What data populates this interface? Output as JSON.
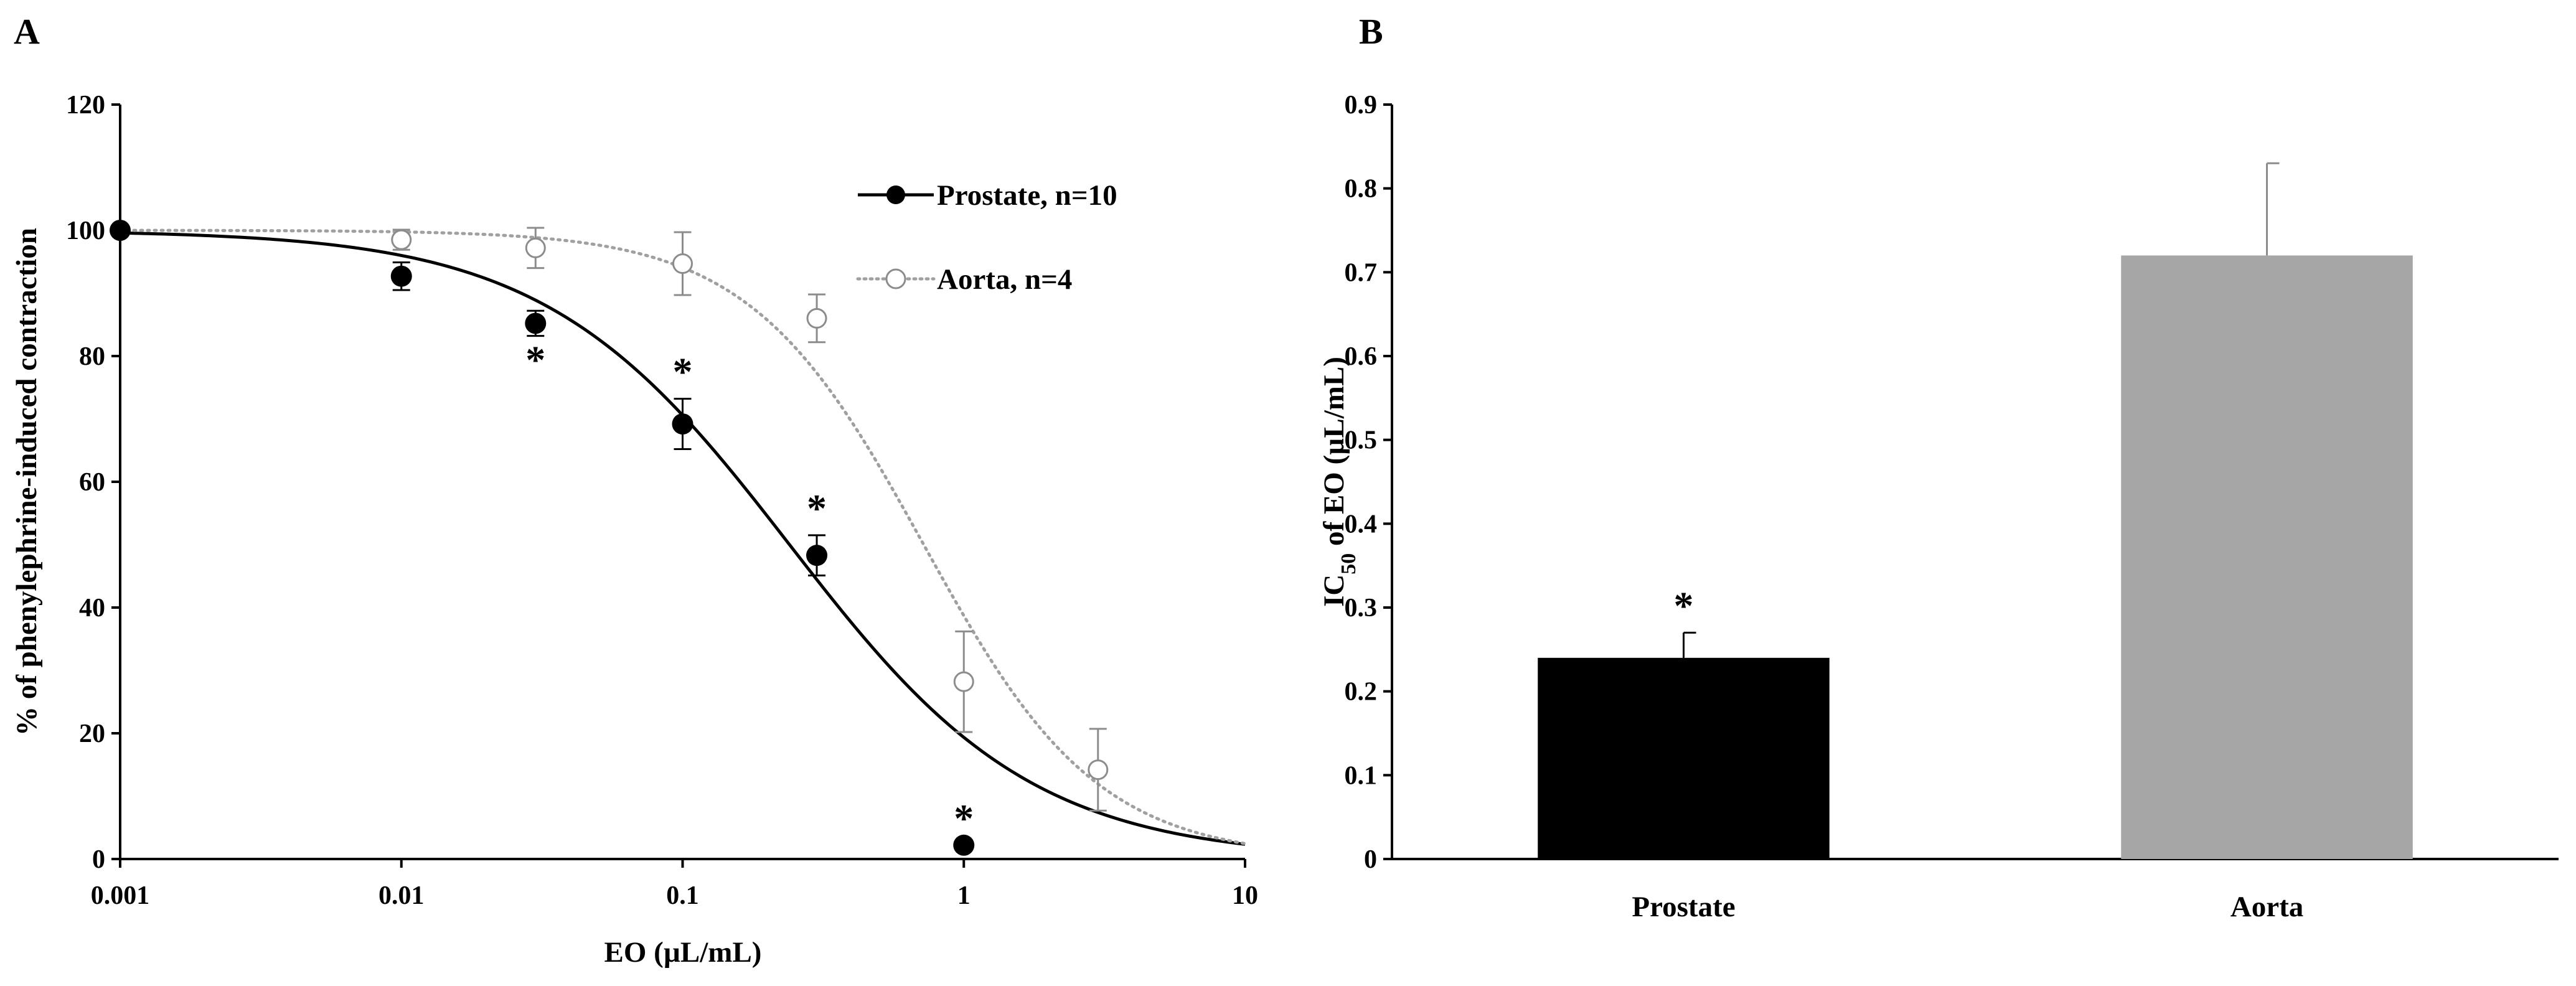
{
  "chart_data": [
    {
      "type": "scatter",
      "panel_label": "A",
      "title": "",
      "xlabel": "EO (µL/mL)",
      "ylabel": "% of phenylephrine-induced contraction",
      "xscale": "log",
      "xlim": [
        0.001,
        10
      ],
      "ylim": [
        0,
        120
      ],
      "xticks": [
        0.001,
        0.01,
        0.1,
        1,
        10
      ],
      "xtick_labels": [
        "0.001",
        "0.01",
        "0.1",
        "1",
        "10"
      ],
      "yticks": [
        0,
        20,
        40,
        60,
        80,
        100,
        120
      ],
      "ytick_labels": [
        "0",
        "20",
        "40",
        "60",
        "80",
        "100",
        "120"
      ],
      "grid": false,
      "legend_position": "top-right",
      "series": [
        {
          "name": "Prostate, n=10",
          "marker": "filled-circle",
          "color": "#000000",
          "fit": {
            "style": "solid",
            "color": "#000000",
            "ic50": 0.24,
            "hill": 1.0,
            "top": 100,
            "bottom": 0
          },
          "points": [
            {
              "x": 0.001,
              "y": 100,
              "err": 0,
              "sig": false
            },
            {
              "x": 0.01,
              "y": 92.7,
              "err": 2.2,
              "sig": false
            },
            {
              "x": 0.03,
              "y": 85.2,
              "err": 2.0,
              "sig": true
            },
            {
              "x": 0.1,
              "y": 69.2,
              "err": 4.0,
              "sig": true
            },
            {
              "x": 0.3,
              "y": 48.3,
              "err": 3.2,
              "sig": true
            },
            {
              "x": 1,
              "y": 2.2,
              "err": 0,
              "sig": true
            }
          ]
        },
        {
          "name": "Aorta, n=4",
          "marker": "open-circle",
          "color": "#8c8c8c",
          "fit": {
            "style": "dotted",
            "color": "#a0a0a0",
            "ic50": 0.72,
            "hill": 1.4,
            "top": 100,
            "bottom": 0
          },
          "points": [
            {
              "x": 0.001,
              "y": 100,
              "err": 0
            },
            {
              "x": 0.01,
              "y": 98.5,
              "err": 1.6
            },
            {
              "x": 0.03,
              "y": 97.2,
              "err": 3.2
            },
            {
              "x": 0.1,
              "y": 94.7,
              "err": 5.0
            },
            {
              "x": 0.3,
              "y": 86.0,
              "err": 3.8
            },
            {
              "x": 1,
              "y": 28.2,
              "err": 8.0
            },
            {
              "x": 3,
              "y": 14.2,
              "err": 6.5
            }
          ]
        }
      ],
      "significance_marker": "*"
    },
    {
      "type": "bar",
      "panel_label": "B",
      "title": "",
      "xlabel": "",
      "ylabel": "IC50 of EO (µL/mL)",
      "ylabel_parts": {
        "prefix": "IC",
        "subscript": "50",
        "suffix": " of EO (µL/mL)"
      },
      "categories": [
        "Prostate",
        "Aorta"
      ],
      "values": [
        0.24,
        0.72
      ],
      "errors": [
        0.03,
        0.11
      ],
      "colors": [
        "#000000",
        "#a6a6a6"
      ],
      "significance": [
        true,
        false
      ],
      "significance_marker": "*",
      "ylim": [
        0,
        0.9
      ],
      "yticks": [
        0,
        0.1,
        0.2,
        0.3,
        0.4,
        0.5,
        0.6,
        0.7,
        0.8,
        0.9
      ],
      "ytick_labels": [
        "0",
        "0.1",
        "0.2",
        "0.3",
        "0.4",
        "0.5",
        "0.6",
        "0.7",
        "0.8",
        "0.9"
      ],
      "grid": false
    }
  ]
}
